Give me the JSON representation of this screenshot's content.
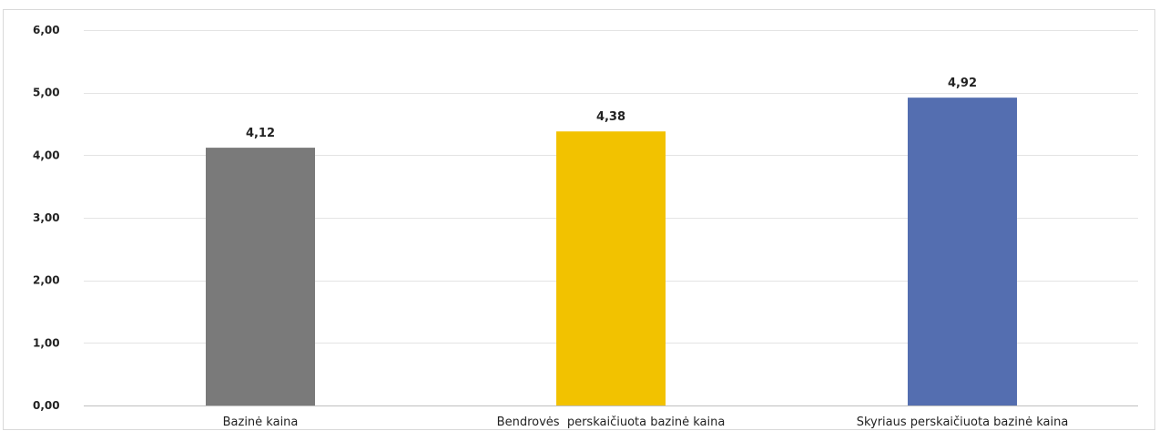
{
  "chart_data": {
    "type": "bar",
    "categories": [
      "Bazinė kaina",
      "Bendrovės  perskaičiuota bazinė kaina",
      "Skyriaus perskaičiuota bazinė kaina"
    ],
    "values": [
      4.12,
      4.38,
      4.92
    ],
    "value_labels": [
      "4,12",
      "4,38",
      "4,92"
    ],
    "colors": [
      "#7a7a7a",
      "#f2c200",
      "#546eb0"
    ],
    "ylim": [
      0,
      6
    ],
    "yticks": [
      0,
      1,
      2,
      3,
      4,
      5,
      6
    ],
    "ytick_labels": [
      "0,00",
      "1,00",
      "2,00",
      "3,00",
      "4,00",
      "5,00",
      "6,00"
    ],
    "grid": true,
    "title": "",
    "xlabel": "",
    "ylabel": ""
  }
}
